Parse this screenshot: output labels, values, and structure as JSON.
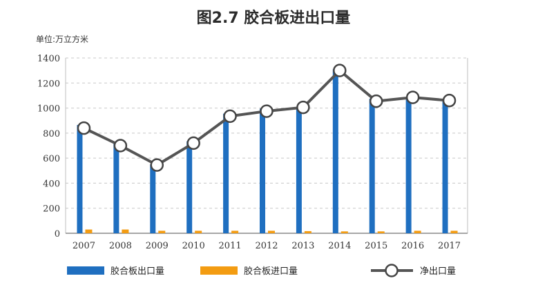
{
  "chart_data": {
    "type": "bar",
    "title": "图2.7  胶合板进出口量",
    "unit_label": "单位:万立方米",
    "categories": [
      "2007",
      "2008",
      "2009",
      "2010",
      "2011",
      "2012",
      "2013",
      "2014",
      "2015",
      "2016",
      "2017"
    ],
    "ylim": [
      0,
      1400
    ],
    "yticks": [
      0,
      200,
      400,
      600,
      800,
      1000,
      1200,
      1400
    ],
    "grid": true,
    "legend_position": "bottom",
    "series": [
      {
        "name": "胶合板出口量",
        "kind": "bar",
        "color": "#1f6fc0",
        "values": [
          865,
          715,
          550,
          735,
          955,
          995,
          1010,
          1310,
          1075,
          1090,
          1070
        ]
      },
      {
        "name": "胶合板进口量",
        "kind": "bar",
        "color": "#f39c12",
        "values": [
          30,
          30,
          20,
          20,
          20,
          20,
          17,
          15,
          15,
          20,
          20
        ]
      },
      {
        "name": "净出口量",
        "kind": "line",
        "color": "#555555",
        "values": [
          840,
          700,
          545,
          720,
          935,
          975,
          1005,
          1300,
          1055,
          1085,
          1060
        ]
      }
    ]
  }
}
